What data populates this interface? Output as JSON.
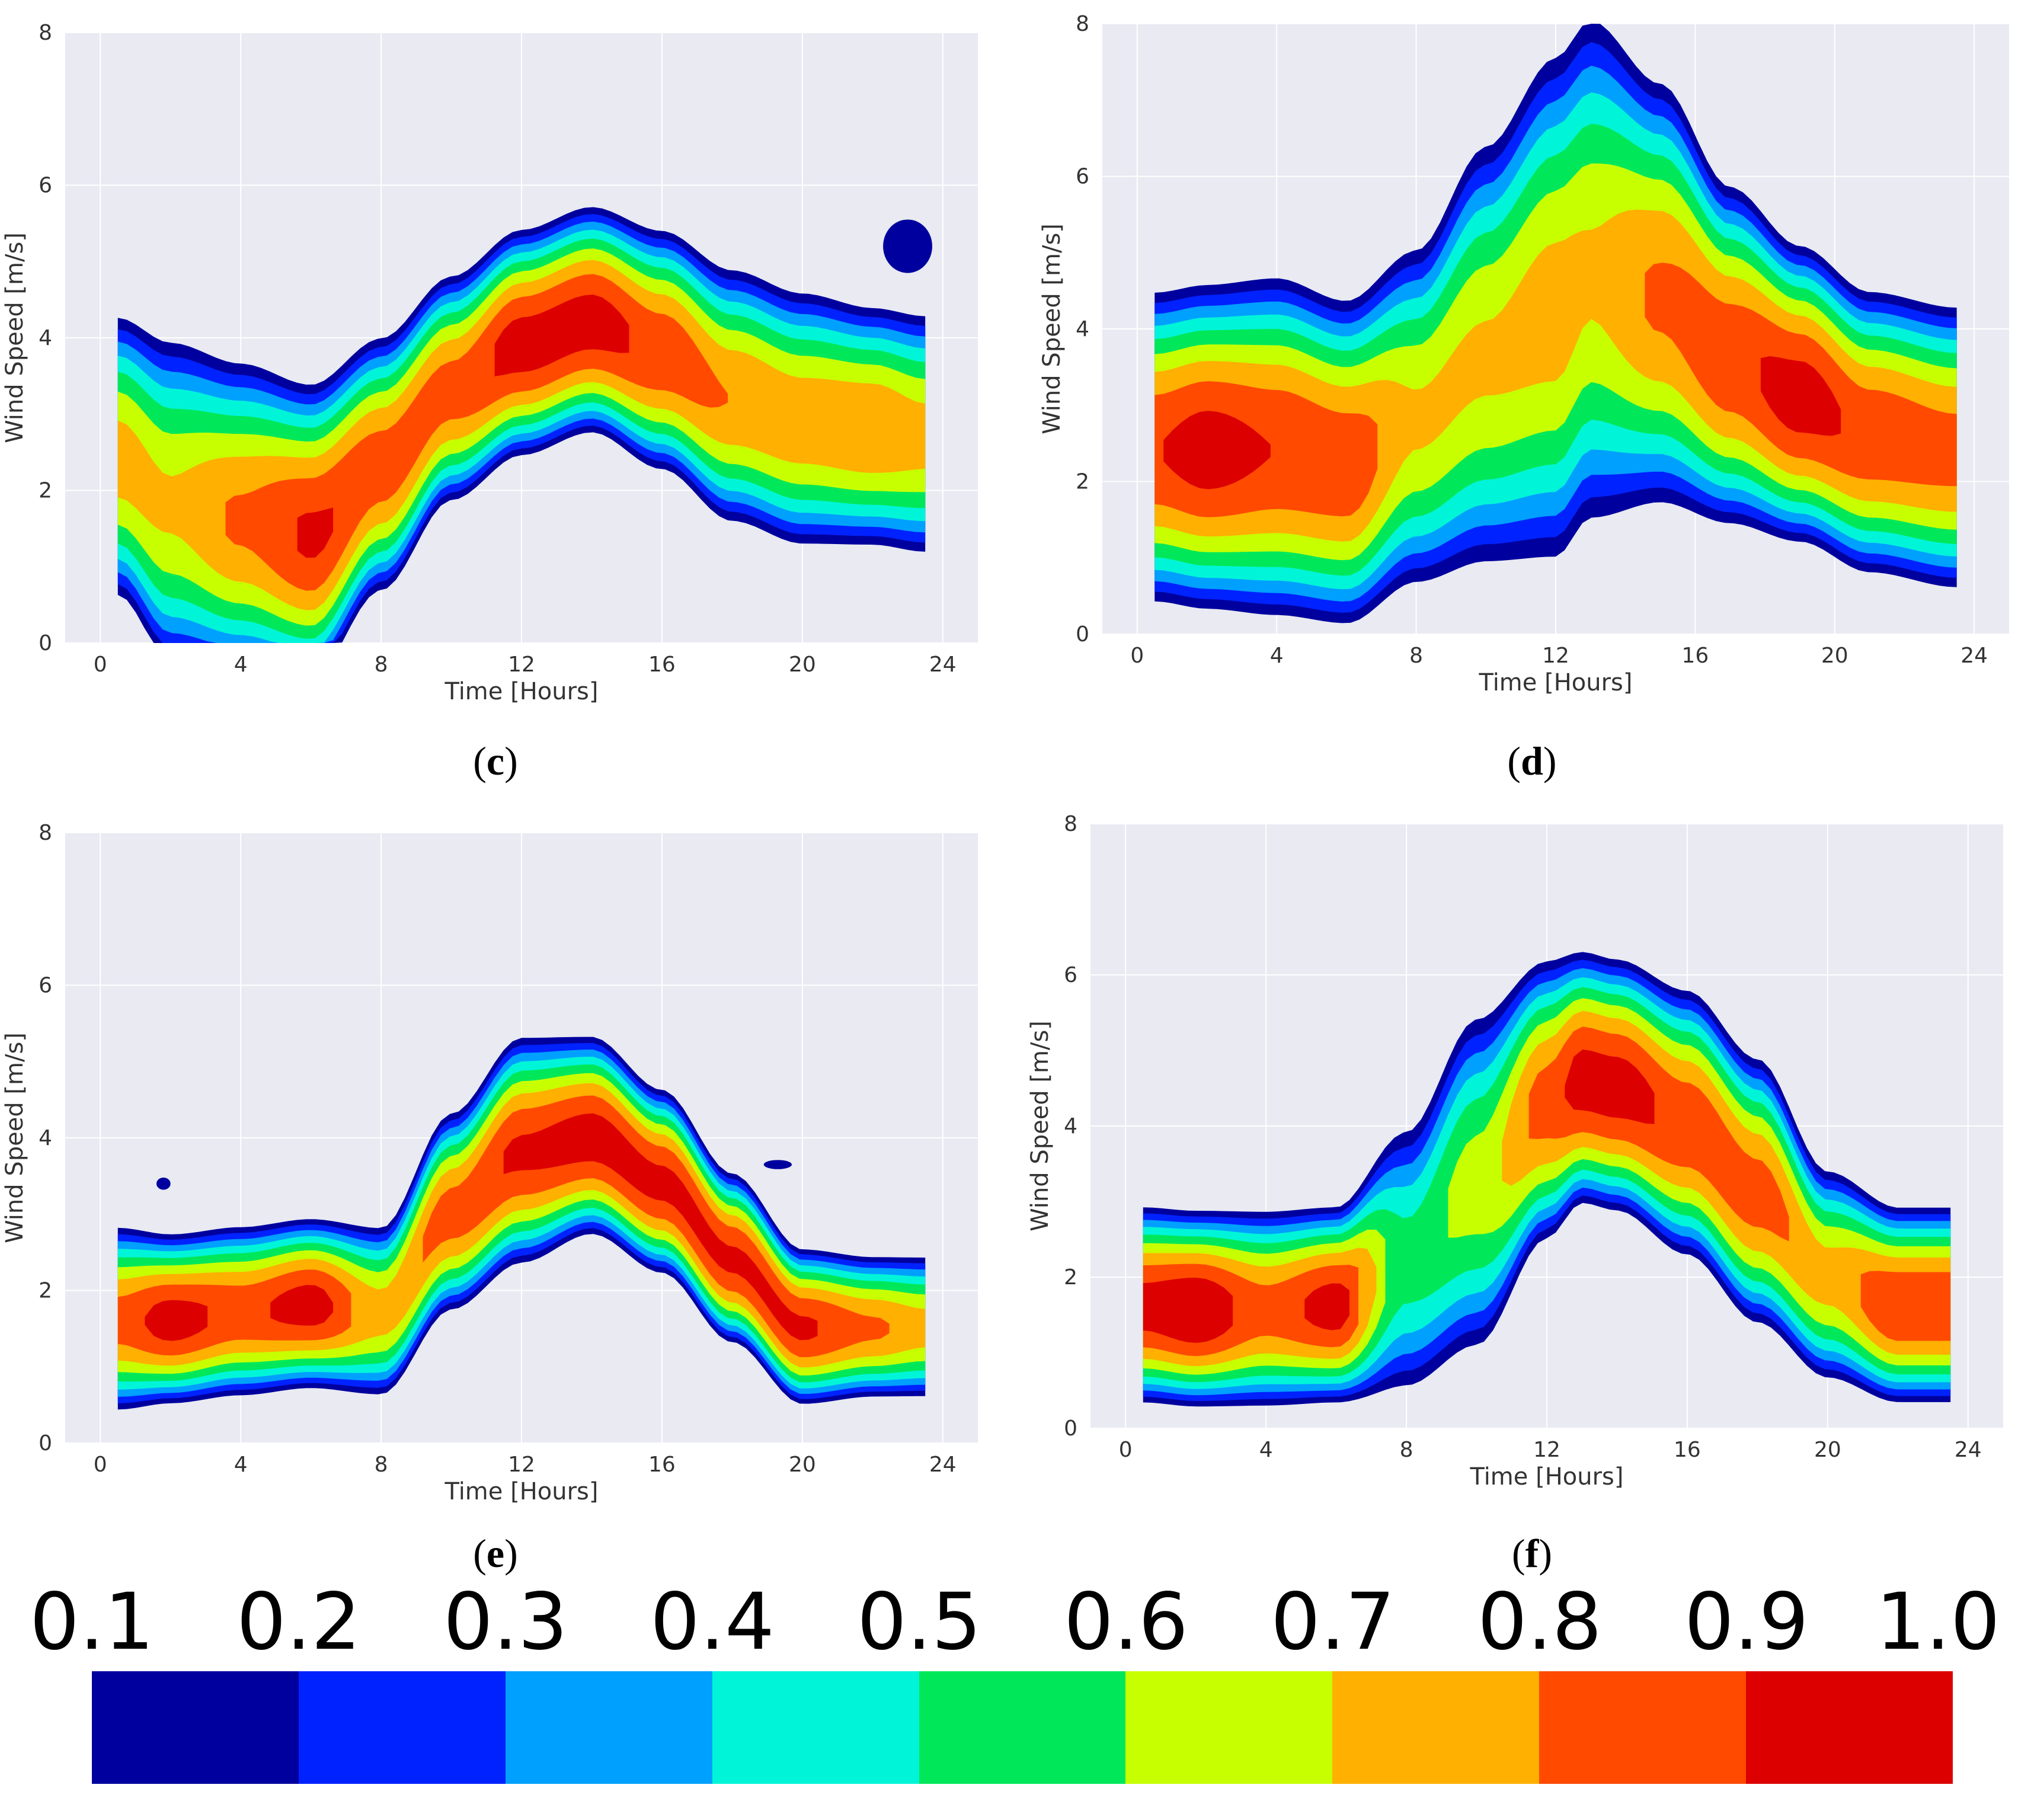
{
  "colors": {
    "plot_bg": "#e9eaf2",
    "grid": "#ffffff",
    "levels": [
      "#00009e",
      "#0022ff",
      "#00a0ff",
      "#00f5d8",
      "#00e85a",
      "#c8ff00",
      "#ffb000",
      "#ff4a00",
      "#dd0000"
    ]
  },
  "colorbar": {
    "labels": [
      "0.1",
      "0.2",
      "0.3",
      "0.4",
      "0.5",
      "0.6",
      "0.7",
      "0.8",
      "0.9",
      "1.0"
    ]
  },
  "chart_data": [
    {
      "id": "c",
      "caption_letter": "c",
      "type": "contour",
      "xlabel": "Time [Hours]",
      "ylabel": "Wind Speed [m/s]",
      "xlim": [
        -1,
        25
      ],
      "ylim": [
        0,
        8
      ],
      "xticks": [
        "0",
        "4",
        "8",
        "12",
        "16",
        "20",
        "24"
      ],
      "yticks": [
        "0",
        "2",
        "4",
        "6",
        "8"
      ],
      "hours": [
        0.5,
        2,
        4,
        6,
        8,
        10,
        12,
        14,
        16,
        18,
        20,
        22,
        23.5
      ],
      "center": [
        2.4,
        1.8,
        1.6,
        1.4,
        2.3,
        3.3,
        3.9,
        4.2,
        3.8,
        3.2,
        2.9,
        2.8,
        2.7
      ],
      "half_width": [
        2.0,
        2.3,
        2.2,
        2.1,
        1.8,
        1.6,
        1.6,
        1.6,
        1.7,
        1.8,
        1.8,
        1.7,
        1.7
      ],
      "peak": [
        0.75,
        0.72,
        0.82,
        0.92,
        0.86,
        0.85,
        0.95,
        0.95,
        0.88,
        0.8,
        0.78,
        0.8,
        0.75
      ],
      "extra_blobs": [
        {
          "x": 23,
          "y": 5.2,
          "rx": 0.7,
          "ry": 0.35,
          "level": 0.15
        }
      ]
    },
    {
      "id": "d",
      "caption_letter": "d",
      "type": "contour",
      "xlabel": "Time [Hours]",
      "ylabel": "Wind Speed [m/s]",
      "xlim": [
        -1,
        25
      ],
      "ylim": [
        0,
        8
      ],
      "xticks": [
        "0",
        "4",
        "8",
        "12",
        "16",
        "20",
        "24"
      ],
      "yticks": [
        "0",
        "2",
        "4",
        "6",
        "8"
      ],
      "hours": [
        0.5,
        2,
        4,
        6,
        8,
        10,
        12,
        13,
        15,
        17,
        19,
        21,
        23.5
      ],
      "center": [
        2.4,
        2.4,
        2.4,
        2.2,
        2.8,
        3.6,
        4.2,
        4.7,
        4.4,
        3.6,
        3.1,
        2.6,
        2.4
      ],
      "half_width": [
        2.2,
        2.3,
        2.4,
        2.3,
        2.4,
        3.0,
        3.6,
        3.6,
        3.0,
        2.4,
        2.1,
        2.0,
        2.0
      ],
      "peak": [
        0.9,
        0.95,
        0.9,
        0.88,
        0.72,
        0.72,
        0.75,
        0.72,
        0.82,
        0.88,
        0.95,
        0.88,
        0.85
      ],
      "extra_blobs": []
    },
    {
      "id": "e",
      "caption_letter": "e",
      "type": "contour",
      "xlabel": "Time [Hours]",
      "ylabel": "Wind Speed [m/s]",
      "xlim": [
        -1,
        25
      ],
      "ylim": [
        0,
        8
      ],
      "xticks": [
        "0",
        "4",
        "8",
        "12",
        "16",
        "20",
        "24"
      ],
      "yticks": [
        "0",
        "2",
        "4",
        "6",
        "8"
      ],
      "hours": [
        0.5,
        2,
        4,
        6,
        8,
        10,
        12,
        14,
        16,
        18,
        20,
        22,
        23.5
      ],
      "center": [
        1.6,
        1.6,
        1.7,
        1.8,
        1.7,
        3.0,
        3.8,
        4.0,
        3.4,
        2.4,
        1.5,
        1.5,
        1.5
      ],
      "half_width": [
        1.3,
        1.2,
        1.2,
        1.2,
        1.2,
        1.4,
        1.6,
        1.4,
        1.3,
        1.2,
        1.1,
        1.0,
        1.0
      ],
      "peak": [
        0.85,
        0.95,
        0.88,
        0.95,
        0.75,
        0.85,
        0.92,
        0.95,
        0.93,
        0.92,
        0.92,
        0.82,
        0.75
      ],
      "extra_blobs": [
        {
          "x": 1.8,
          "y": 3.4,
          "rx": 0.2,
          "ry": 0.08,
          "level": 0.15
        },
        {
          "x": 19.3,
          "y": 3.65,
          "rx": 0.4,
          "ry": 0.06,
          "level": 0.15
        }
      ]
    },
    {
      "id": "f",
      "caption_letter": "f",
      "type": "contour",
      "xlabel": "Time [Hours]",
      "ylabel": "Wind Speed [m/s]",
      "xlim": [
        -1,
        25
      ],
      "ylim": [
        0,
        8
      ],
      "xticks": [
        "0",
        "4",
        "8",
        "12",
        "16",
        "20",
        "24"
      ],
      "yticks": [
        "0",
        "2",
        "4",
        "6",
        "8"
      ],
      "hours": [
        0.5,
        2,
        4,
        6,
        8,
        10,
        12,
        13,
        14,
        16,
        18,
        20,
        22,
        23.5
      ],
      "center": [
        1.6,
        1.55,
        1.55,
        1.6,
        2.2,
        3.2,
        4.3,
        4.6,
        4.5,
        4.0,
        3.1,
        2.0,
        1.6,
        1.6
      ],
      "half_width": [
        1.4,
        1.4,
        1.4,
        1.4,
        1.9,
        2.4,
        2.0,
        1.8,
        1.8,
        1.9,
        1.9,
        1.5,
        1.4,
        1.4
      ],
      "peak": [
        0.95,
        1.0,
        0.85,
        0.95,
        0.55,
        0.65,
        0.85,
        0.95,
        0.95,
        0.88,
        0.85,
        0.75,
        0.9,
        0.9
      ],
      "extra_blobs": []
    }
  ]
}
